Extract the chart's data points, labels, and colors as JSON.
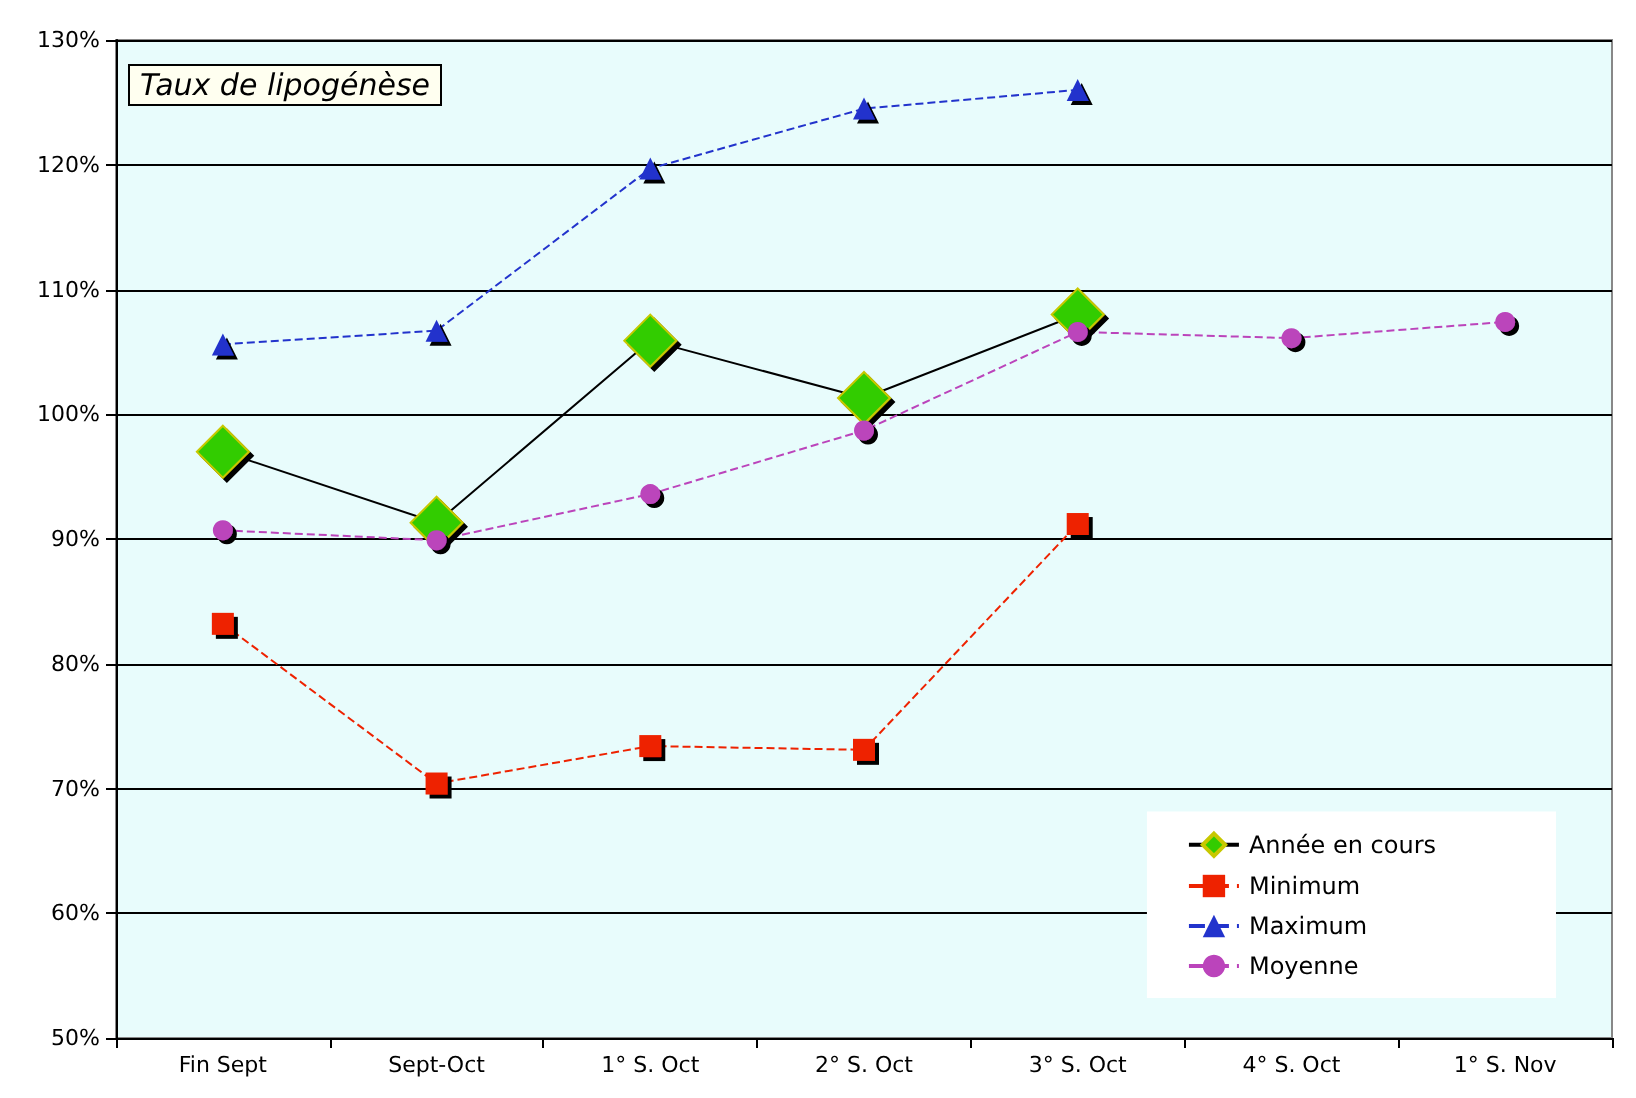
{
  "chart_data": {
    "type": "line",
    "title": "Taux de lipogénèse",
    "categories": [
      "Fin Sept",
      "Sept-Oct",
      "1° S. Oct",
      "2° S. Oct",
      "3° S. Oct",
      "4° S. Oct",
      "1° S. Nov"
    ],
    "series": [
      {
        "name": "Année en cours",
        "color": "#33cc00",
        "marker": "diamond",
        "line_style": "solid",
        "values": [
          97,
          91.3,
          105.9,
          101.3,
          108,
          null,
          null
        ]
      },
      {
        "name": "Minimum",
        "color": "#ee2200",
        "marker": "square",
        "line_style": "dashed",
        "values": [
          83.2,
          70.4,
          73.4,
          73.1,
          91.2,
          null,
          null
        ]
      },
      {
        "name": "Maximum",
        "color": "#2233cc",
        "marker": "triangle",
        "line_style": "dashed",
        "values": [
          105.6,
          106.7,
          119.7,
          124.5,
          126,
          null,
          null
        ]
      },
      {
        "name": "Moyenne",
        "color": "#bb44bb",
        "marker": "circle",
        "line_style": "dashed",
        "values": [
          90.7,
          89.9,
          93.6,
          98.7,
          106.6,
          106.1,
          107.4
        ]
      }
    ],
    "ylim": [
      50,
      130
    ],
    "yticks": [
      {
        "value": 50,
        "label": "50%"
      },
      {
        "value": 60,
        "label": "60%"
      },
      {
        "value": 70,
        "label": "70%"
      },
      {
        "value": 80,
        "label": "80%"
      },
      {
        "value": 90,
        "label": "90%"
      },
      {
        "value": 100,
        "label": "100%"
      },
      {
        "value": 110,
        "label": "110%"
      },
      {
        "value": 120,
        "label": "120%"
      },
      {
        "value": 130,
        "label": "130%"
      }
    ],
    "grid": "y",
    "legend": "bottom right"
  }
}
